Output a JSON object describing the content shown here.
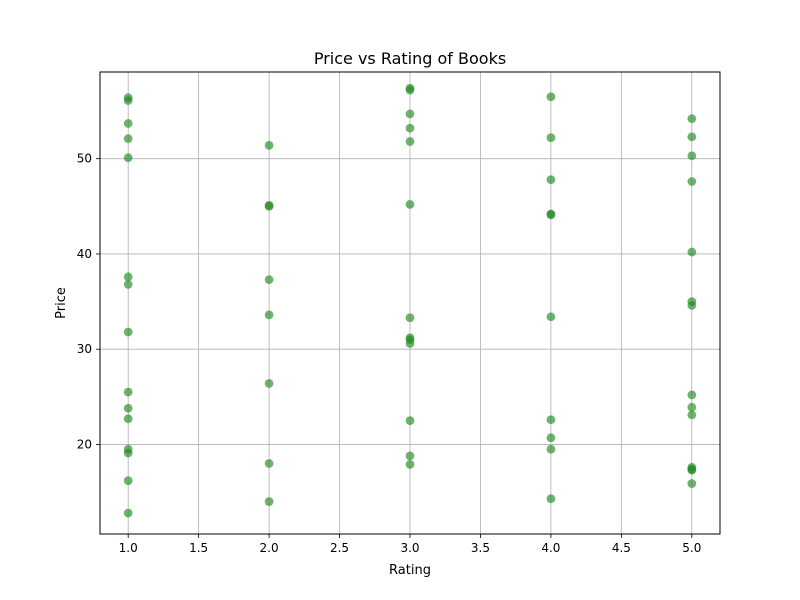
{
  "chart_data": {
    "type": "scatter",
    "title": "Price vs Rating of Books",
    "xlabel": "Rating",
    "ylabel": "Price",
    "xlim": [
      0.8,
      5.2
    ],
    "ylim": [
      10.6,
      59.1
    ],
    "xticks": [
      1.0,
      1.5,
      2.0,
      2.5,
      3.0,
      3.5,
      4.0,
      4.5,
      5.0
    ],
    "xtick_labels": [
      "1.0",
      "1.5",
      "2.0",
      "2.5",
      "3.0",
      "3.5",
      "4.0",
      "4.5",
      "5.0"
    ],
    "yticks": [
      20,
      30,
      40,
      50
    ],
    "ytick_labels": [
      "20",
      "30",
      "40",
      "50"
    ],
    "grid": true,
    "marker_color": "#228B22",
    "marker_alpha": 0.65,
    "points": [
      {
        "x": 1,
        "y": 56.4
      },
      {
        "x": 1,
        "y": 56.1
      },
      {
        "x": 1,
        "y": 53.7
      },
      {
        "x": 1,
        "y": 52.1
      },
      {
        "x": 1,
        "y": 50.1
      },
      {
        "x": 1,
        "y": 37.6
      },
      {
        "x": 1,
        "y": 36.8
      },
      {
        "x": 1,
        "y": 31.8
      },
      {
        "x": 1,
        "y": 25.5
      },
      {
        "x": 1,
        "y": 23.8
      },
      {
        "x": 1,
        "y": 22.7
      },
      {
        "x": 1,
        "y": 19.5
      },
      {
        "x": 1,
        "y": 19.1
      },
      {
        "x": 1,
        "y": 16.2
      },
      {
        "x": 1,
        "y": 12.8
      },
      {
        "x": 2,
        "y": 51.4
      },
      {
        "x": 2,
        "y": 45.1
      },
      {
        "x": 2,
        "y": 45.0
      },
      {
        "x": 2,
        "y": 37.3
      },
      {
        "x": 2,
        "y": 33.6
      },
      {
        "x": 2,
        "y": 26.4
      },
      {
        "x": 2,
        "y": 18.0
      },
      {
        "x": 2,
        "y": 14.0
      },
      {
        "x": 3,
        "y": 57.4
      },
      {
        "x": 3,
        "y": 57.2
      },
      {
        "x": 3,
        "y": 54.7
      },
      {
        "x": 3,
        "y": 53.2
      },
      {
        "x": 3,
        "y": 51.8
      },
      {
        "x": 3,
        "y": 45.2
      },
      {
        "x": 3,
        "y": 33.3
      },
      {
        "x": 3,
        "y": 31.2
      },
      {
        "x": 3,
        "y": 31.0
      },
      {
        "x": 3,
        "y": 30.6
      },
      {
        "x": 3,
        "y": 22.5
      },
      {
        "x": 3,
        "y": 18.8
      },
      {
        "x": 3,
        "y": 17.9
      },
      {
        "x": 4,
        "y": 56.5
      },
      {
        "x": 4,
        "y": 52.2
      },
      {
        "x": 4,
        "y": 47.8
      },
      {
        "x": 4,
        "y": 44.2
      },
      {
        "x": 4,
        "y": 44.1
      },
      {
        "x": 4,
        "y": 33.4
      },
      {
        "x": 4,
        "y": 22.6
      },
      {
        "x": 4,
        "y": 20.7
      },
      {
        "x": 4,
        "y": 19.5
      },
      {
        "x": 4,
        "y": 14.3
      },
      {
        "x": 5,
        "y": 54.2
      },
      {
        "x": 5,
        "y": 52.3
      },
      {
        "x": 5,
        "y": 50.3
      },
      {
        "x": 5,
        "y": 47.6
      },
      {
        "x": 5,
        "y": 40.2
      },
      {
        "x": 5,
        "y": 35.0
      },
      {
        "x": 5,
        "y": 34.6
      },
      {
        "x": 5,
        "y": 25.2
      },
      {
        "x": 5,
        "y": 23.9
      },
      {
        "x": 5,
        "y": 23.1
      },
      {
        "x": 5,
        "y": 17.6
      },
      {
        "x": 5,
        "y": 17.4
      },
      {
        "x": 5,
        "y": 17.3
      },
      {
        "x": 5,
        "y": 15.9
      }
    ]
  }
}
